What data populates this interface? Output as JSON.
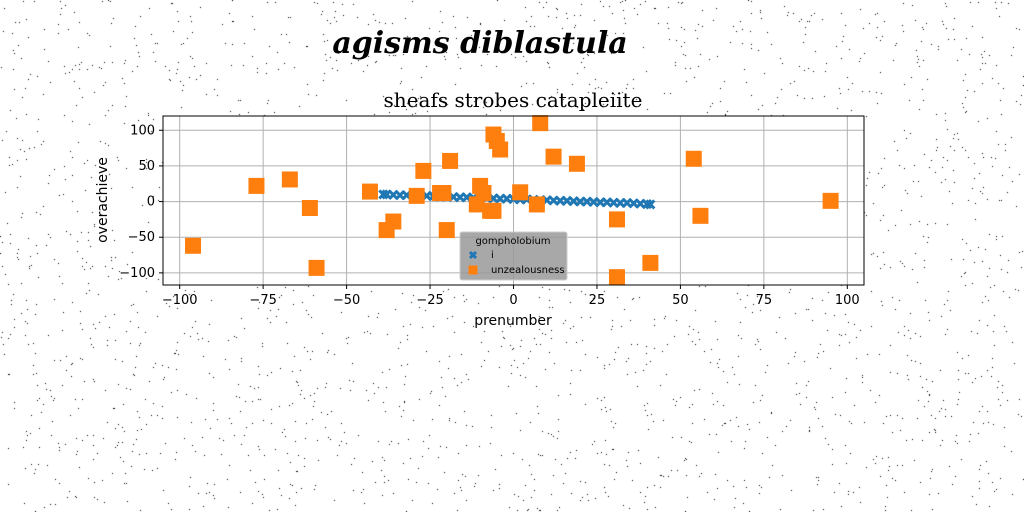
{
  "suptitle": "agisms diblastula",
  "chart_data": {
    "type": "scatter",
    "title": "sheafs strobes catapleiite",
    "xlabel": "prenumber",
    "ylabel": "overachieve",
    "xlim": [
      -105,
      105
    ],
    "ylim": [
      -117,
      120
    ],
    "xticks": [
      -100,
      -75,
      -50,
      -25,
      0,
      25,
      50,
      75,
      100
    ],
    "yticks": [
      -100,
      -50,
      0,
      50,
      100
    ],
    "grid": true,
    "legend": {
      "title": "gompholobium",
      "placement": "lower-center",
      "background": "#999999"
    },
    "series": [
      {
        "name": "i",
        "color": "#1f77b4",
        "marker": "x",
        "x": [
          -39,
          -38,
          -36,
          -34,
          -32,
          -30,
          -28,
          -26,
          -24,
          -22,
          -20,
          -18,
          -16,
          -14,
          -12,
          -10,
          -8,
          -6,
          -4,
          -2,
          0,
          2,
          4,
          6,
          8,
          10,
          12,
          14,
          16,
          18,
          20,
          22,
          24,
          26,
          28,
          30,
          32,
          34,
          36,
          38,
          40,
          41
        ],
        "y": [
          10,
          10,
          9.5,
          9,
          9,
          8.5,
          8,
          8,
          7.5,
          7,
          7,
          6.5,
          6,
          6,
          5.5,
          5,
          5,
          4.5,
          4,
          4,
          3.5,
          3,
          3,
          2.5,
          2,
          2,
          1.5,
          1,
          1,
          0.5,
          0,
          0,
          -0.5,
          -1,
          -1,
          -1.5,
          -2,
          -2,
          -2.5,
          -3,
          -3.5,
          -4
        ]
      },
      {
        "name": "unzealousness",
        "color": "#ff7f0e",
        "marker": "s",
        "x": [
          -96,
          -77,
          -67,
          -61,
          -59,
          -43,
          -38,
          -36,
          -29,
          -27,
          -22,
          -21,
          -20,
          -19,
          -11,
          -10,
          -9,
          -7,
          -6,
          -6,
          -5,
          -4,
          2,
          7,
          8,
          12,
          19,
          31,
          31,
          41,
          54,
          56,
          95
        ],
        "y": [
          -62,
          22,
          31,
          -9,
          -93,
          14,
          -40,
          -28,
          8,
          43,
          12,
          12,
          -40,
          57,
          -4,
          22,
          12,
          -13,
          -13,
          94,
          85,
          73,
          13,
          -4,
          110,
          63,
          53,
          -25,
          -106,
          -86,
          60,
          -20,
          1
        ]
      }
    ]
  }
}
